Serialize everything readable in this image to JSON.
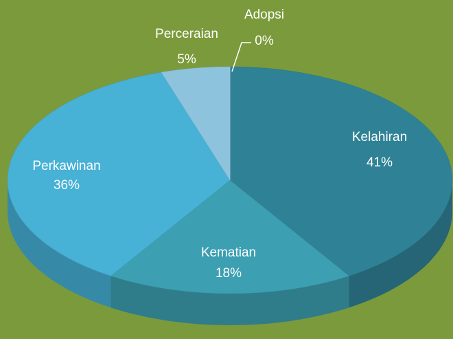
{
  "chart_data": {
    "type": "pie",
    "categories": [
      "Kelahiran",
      "Kematian",
      "Perkawinan",
      "Perceraian",
      "Adopsi"
    ],
    "values": [
      41,
      18,
      36,
      5,
      0
    ],
    "value_labels": [
      "41%",
      "18%",
      "36%",
      "5%",
      "0%"
    ],
    "colors": [
      "#2f8296",
      "#3c9fb2",
      "#47b1d6",
      "#8ec3dd",
      "#b9dcea"
    ]
  }
}
